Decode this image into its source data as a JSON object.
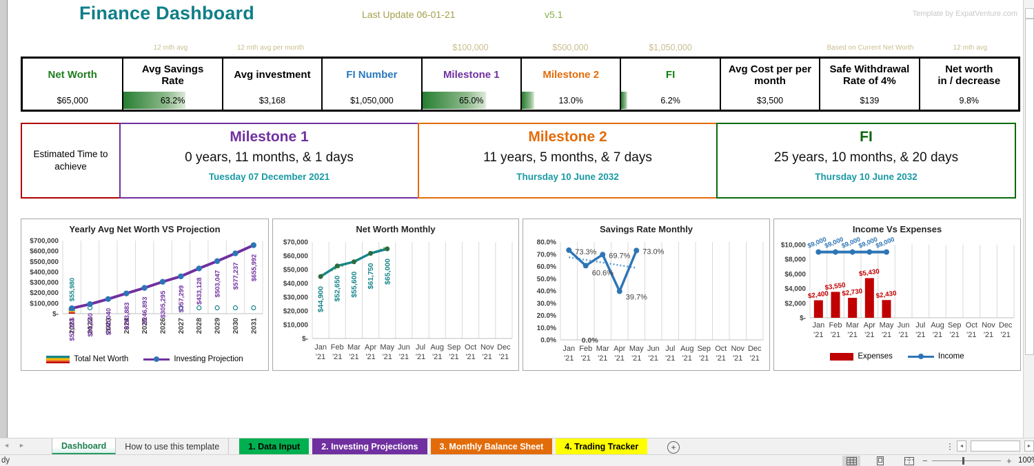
{
  "header": {
    "title": "Finance Dashboard",
    "title_color": "#0f7e88",
    "last_update": "Last Update 06-01-21",
    "last_update_color": "#a4a04c",
    "version": "v5.1",
    "version_color": "#85b24a",
    "credit": "Template by ExpatVenture.com",
    "credit_color": "#c8c8c8"
  },
  "kpi_annotations": [
    {
      "text": "12 mth avg",
      "col": 2
    },
    {
      "text": "12 mth avg per month",
      "col": 3
    },
    {
      "text": "$100,000",
      "col": 5
    },
    {
      "text": "$500,000",
      "col": 6
    },
    {
      "text": "$1,050,000",
      "col": 7
    },
    {
      "text": "Based on Current Net Worth",
      "col": 9
    },
    {
      "text": "12 mth avg",
      "col": 10
    }
  ],
  "annotation_color": "#c9bd8c",
  "kpi_cards": [
    {
      "title": "Net Worth",
      "value": "$65,000",
      "title_color": "#1e7d1e"
    },
    {
      "title": "Avg Savings\nRate",
      "value": "63.2%",
      "title_color": "#000000",
      "bar_percent": 63
    },
    {
      "title": "Avg investment",
      "value": "$3,168",
      "title_color": "#000000"
    },
    {
      "title": "FI Number",
      "value": "$1,050,000",
      "title_color": "#2878be"
    },
    {
      "title": "Milestone 1",
      "value": "65.0%",
      "title_color": "#7030a0",
      "bar_percent": 65
    },
    {
      "title": "Milestone 2",
      "value": "13.0%",
      "title_color": "#e36c0a",
      "bar_percent": 13
    },
    {
      "title": "FI",
      "value": "6.2%",
      "title_color": "#0f7e0f",
      "bar_percent": 6
    },
    {
      "title": "Avg Cost per per\nmonth",
      "value": "$3,500",
      "title_color": "#000000"
    },
    {
      "title": "Safe Withdrawal\nRate of 4%",
      "value": "$139",
      "title_color": "#000000"
    },
    {
      "title": "Net worth\nin / decrease",
      "value": "9.8%",
      "title_color": "#000000"
    }
  ],
  "eta": {
    "label": "Estimated Time to achieve",
    "border_color": "#b00000"
  },
  "milestones": [
    {
      "title": "Milestone 1",
      "color": "#7030a0",
      "duration": "0 years, 11 months, & 1 days",
      "date": "Tuesday 07 December 2021"
    },
    {
      "title": "Milestone 2",
      "color": "#e36c0a",
      "duration": "11 years, 5 months, & 7 days",
      "date": "Thursday 10 June 2032"
    },
    {
      "title": "FI",
      "color": "#096909",
      "duration": "25 years, 10 months, & 20 days",
      "date": "Thursday 10 June 2032"
    }
  ],
  "milestone_date_color": "#1899a3",
  "chart_data": [
    {
      "type": "line",
      "title": "Yearly Avg Net Worth VS Projection",
      "ylim": [
        0,
        700000
      ],
      "y_ticks": [
        "$700,000",
        "$600,000",
        "$500,000",
        "$400,000",
        "$300,000",
        "$200,000",
        "$100,000",
        "$-"
      ],
      "categories": [
        "2021",
        "2022",
        "2023",
        "2024",
        "2025",
        "2026",
        "2027",
        "2028",
        "2029",
        "2030",
        "2031"
      ],
      "grid": "vertical",
      "legend_position": "bottom",
      "series": [
        {
          "name": "Total Net Worth",
          "type": "stacked_bar",
          "category": "2021",
          "segments": [
            {
              "color": "#c00000",
              "value": 11000
            },
            {
              "color": "#ed7d31",
              "value": 9000
            },
            {
              "color": "#ffc000",
              "value": 7000
            },
            {
              "color": "#17858b",
              "value": 28980
            }
          ],
          "total": 55980,
          "total_label": "$55,980",
          "label_color": "#17858b",
          "marker_value": 55980,
          "marker_categories": [
            "2022",
            "2027",
            "2028",
            "2029",
            "2030",
            "2031"
          ],
          "marker_color": "#17858b"
        },
        {
          "name": "Investing Projection",
          "type": "line",
          "color": "#7030a0",
          "marker_color": "#2e75b6",
          "values": [
            51266,
            91240,
            140040,
            193883,
            246893,
            305295,
            357299,
            433128,
            503047,
            577237,
            655992
          ],
          "labels": [
            "$51,266",
            "$91,240",
            "$140,040",
            "$193,883",
            "$246,893",
            "$305,295",
            "$357,299",
            "$433,128",
            "$503,047",
            "$577,237",
            "$655,992"
          ],
          "label_color": "#7030a0"
        }
      ],
      "legend": [
        {
          "label": "Total Net Worth",
          "swatch": "stripes"
        },
        {
          "label": "Investing Projection",
          "swatch": "line",
          "color": "#7030a0",
          "marker_color": "#2e75b6"
        }
      ]
    },
    {
      "type": "line",
      "title": "Net Worth Monthly",
      "ylim": [
        0,
        70000
      ],
      "y_ticks": [
        "$70,000",
        "$60,000",
        "$50,000",
        "$40,000",
        "$30,000",
        "$20,000",
        "$10,000",
        "$-"
      ],
      "categories": [
        "Jan",
        "Feb",
        "Mar",
        "Apr",
        "May",
        "Jun",
        "Jul",
        "Aug",
        "Sep",
        "Oct",
        "Nov",
        "Dec"
      ],
      "category_suffix": "'21",
      "grid": "vertical",
      "series": [
        {
          "name": "Net Worth",
          "type": "line",
          "color": "#17858b",
          "marker_color": "#2e6b3f",
          "values": [
            44900,
            52650,
            55600,
            61750,
            65000
          ],
          "labels": [
            "$44,900",
            "$52,650",
            "$55,600",
            "$61,750",
            "$65,000"
          ],
          "label_color": "#17858b"
        }
      ],
      "trendline": {
        "start": 46000,
        "end": 66500,
        "color": "#70ad47"
      }
    },
    {
      "type": "line",
      "title": "Savings Rate Monthly",
      "ylim": [
        0,
        80
      ],
      "y_ticks": [
        "80.0%",
        "70.0%",
        "60.0%",
        "50.0%",
        "40.0%",
        "30.0%",
        "20.0%",
        "10.0%",
        "0.0%"
      ],
      "categories": [
        "Jan",
        "Feb",
        "Mar",
        "Apr",
        "May",
        "Jun",
        "Jul",
        "Aug",
        "Sep",
        "Oct",
        "Nov",
        "Dec"
      ],
      "category_suffix": "'21",
      "grid": "vertical",
      "series": [
        {
          "name": "Savings Rate",
          "type": "line",
          "color": "#2e75b6",
          "marker_color": "#2e75b6",
          "values": [
            73.3,
            60.6,
            69.7,
            39.7,
            73.0
          ],
          "labels": [
            "73.3%",
            "60.6%",
            "69.7%",
            "39.7%",
            "73.0%"
          ],
          "label_color": "#3f3f3f"
        }
      ],
      "extra_label": {
        "text": "0.0%"
      },
      "trendline": {
        "start": 67.5,
        "end": 58.8,
        "color": "#5b9bd5"
      }
    },
    {
      "type": "bar",
      "title": "Income Vs Expenses",
      "ylim": [
        0,
        10000
      ],
      "y_ticks": [
        "$10,000",
        "$8,000",
        "$6,000",
        "$4,000",
        "$2,000",
        "$-"
      ],
      "categories": [
        "Jan",
        "Feb",
        "Mar",
        "Apr",
        "May",
        "Jun",
        "Jul",
        "Aug",
        "Sep",
        "Oct",
        "Nov",
        "Dec"
      ],
      "category_suffix": "'21",
      "grid": "vertical",
      "legend_position": "bottom",
      "series": [
        {
          "name": "Expenses",
          "type": "bar",
          "color": "#c00000",
          "values": [
            2400,
            3550,
            2730,
            5430,
            2430
          ],
          "labels": [
            "$2,400",
            "$3,550",
            "$2,730",
            "$5,430",
            "$2,430"
          ],
          "label_color": "#c00000"
        },
        {
          "name": "Income",
          "type": "line",
          "color": "#2e75b6",
          "marker_color": "#2e75b6",
          "values": [
            9000,
            9000,
            9000,
            9000,
            9000
          ],
          "labels": [
            "$9,000",
            "$9,000",
            "$9,000",
            "$9,000",
            "$9,000"
          ],
          "label_color": "#2e75b6"
        }
      ],
      "legend": [
        {
          "label": "Expenses",
          "swatch": "rect",
          "color": "#c00000"
        },
        {
          "label": "Income",
          "swatch": "line",
          "color": "#2e75b6",
          "marker_color": "#2e75b6"
        }
      ]
    }
  ],
  "sheet_tabs": [
    {
      "label": "Dashboard",
      "style": "active",
      "bg": "#ffffff",
      "fg": "#1d7f4f"
    },
    {
      "label": "How to use this template",
      "style": "plain",
      "bg": "#f1f1f1",
      "fg": "#333333"
    },
    {
      "label": "1. Data Input",
      "style": "colored first-colored",
      "bg": "#00b050",
      "fg": "#000000"
    },
    {
      "label": "2. Investing Projections",
      "style": "colored",
      "bg": "#7030a0",
      "fg": "#ffffff"
    },
    {
      "label": "3. Monthly Balance Sheet",
      "style": "colored",
      "bg": "#e36c0a",
      "fg": "#ffffff"
    },
    {
      "label": "4. Trading Tracker",
      "style": "colored",
      "bg": "#ffff00",
      "fg": "#000000"
    }
  ],
  "status_bar": {
    "left_text": "dy",
    "zoom_label": "100%"
  }
}
